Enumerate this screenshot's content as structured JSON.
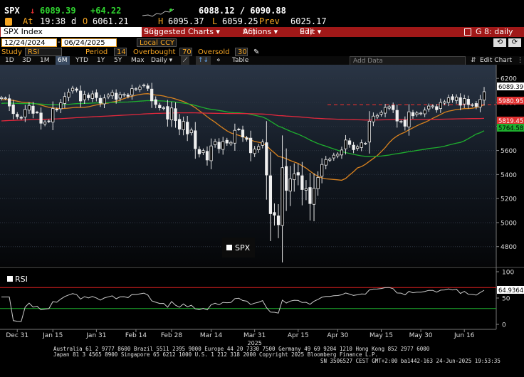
{
  "header": {
    "ticker": "SPX",
    "arrow": "↓",
    "last_price": "6089.39",
    "change": "+64.22",
    "bid_ask": "6088.12 / 6090.88",
    "at_label": "At",
    "time": "19:38",
    "d_label": "d",
    "open_label": "O",
    "open": "6061.21",
    "high_label": "H",
    "high": "6095.37",
    "low_label": "L",
    "low": "6059.25",
    "prev_label": "Prev",
    "prev": "6025.17"
  },
  "menubar": {
    "security": "SPX Index",
    "items": [
      {
        "num": "96)",
        "label": "Suggested Charts ▾"
      },
      {
        "num": "96)",
        "label": "Actions ▾"
      },
      {
        "num": "97)",
        "label": "Edit ▾"
      }
    ],
    "window": "G 8: daily",
    "window_icon": "expand-icon"
  },
  "daterow": {
    "start": "12/24/2024",
    "end": "06/24/2025",
    "currency": "Local CCY",
    "nav_back": "⟲",
    "nav_fwd": "⟳"
  },
  "studyrow": {
    "study_label": "Study",
    "study_value": "RSI",
    "period_label": "Period",
    "period_value": "14",
    "overbought_label": "Overbought",
    "overbought_value": "70",
    "oversold_label": "Oversold",
    "oversold_value": "30"
  },
  "rangerow": {
    "ranges": [
      "1D",
      "3D",
      "1M",
      "6M",
      "YTD",
      "1Y",
      "5Y",
      "Max"
    ],
    "selected": "6M",
    "interval": "Daily ▾",
    "table": "Table",
    "add_data_placeholder": "Add Data",
    "edit_chart": "Edit Chart"
  },
  "chart_data": [
    {
      "type": "line",
      "name": "SPX",
      "x": [
        "12/24",
        "12/26",
        "12/27",
        "12/30",
        "12/31",
        "01/02",
        "01/03",
        "01/06",
        "01/07",
        "01/08",
        "01/10",
        "01/13",
        "01/14",
        "01/15",
        "01/16",
        "01/17",
        "01/21",
        "01/22",
        "01/23",
        "01/24",
        "01/27",
        "01/28",
        "01/29",
        "01/30",
        "01/31",
        "02/03",
        "02/04",
        "02/05",
        "02/06",
        "02/07",
        "02/10",
        "02/11",
        "02/12",
        "02/13",
        "02/14",
        "02/18",
        "02/19",
        "02/20",
        "02/21",
        "02/24",
        "02/25",
        "02/26",
        "02/27",
        "02/28",
        "03/03",
        "03/04",
        "03/05",
        "03/06",
        "03/07",
        "03/10",
        "03/11",
        "03/12",
        "03/13",
        "03/14",
        "03/17",
        "03/18",
        "03/19",
        "03/20",
        "03/21",
        "03/24",
        "03/25",
        "03/26",
        "03/27",
        "03/28",
        "03/31",
        "04/01",
        "04/02",
        "04/03",
        "04/04",
        "04/07",
        "04/08",
        "04/09",
        "04/10",
        "04/11",
        "04/14",
        "04/15",
        "04/16",
        "04/17",
        "04/21",
        "04/22",
        "04/23",
        "04/24",
        "04/25",
        "04/28",
        "04/29",
        "04/30",
        "05/01",
        "05/02",
        "05/05",
        "05/06",
        "05/07",
        "05/08",
        "05/09",
        "05/12",
        "05/13",
        "05/14",
        "05/15",
        "05/16",
        "05/19",
        "05/20",
        "05/21",
        "05/22",
        "05/23",
        "05/27",
        "05/28",
        "05/29",
        "05/30",
        "06/02",
        "06/03",
        "06/04",
        "06/05",
        "06/06",
        "06/09",
        "06/10",
        "06/11",
        "06/12",
        "06/13",
        "06/16",
        "06/17",
        "06/18",
        "06/20",
        "06/23",
        "06/24"
      ],
      "close": [
        6040,
        6037,
        5970,
        5907,
        5882,
        5869,
        5942,
        5975,
        5909,
        5918,
        5827,
        5836,
        5842,
        5950,
        5937,
        5997,
        6049,
        6086,
        6118,
        6101,
        6012,
        6067,
        6039,
        6071,
        6040,
        5994,
        6037,
        6061,
        6083,
        6026,
        6066,
        6068,
        6051,
        6115,
        6114,
        6129,
        6144,
        6117,
        6013,
        5983,
        5955,
        5956,
        5861,
        5954,
        5849,
        5778,
        5842,
        5738,
        5770,
        5615,
        5572,
        5599,
        5521,
        5638,
        5675,
        5615,
        5675,
        5662,
        5667,
        5768,
        5777,
        5712,
        5693,
        5581,
        5612,
        5633,
        5671,
        5396,
        5074,
        5062,
        4982,
        5457,
        5268,
        5363,
        5406,
        5396,
        5275,
        5282,
        5158,
        5287,
        5376,
        5484,
        5525,
        5528,
        5561,
        5569,
        5604,
        5687,
        5650,
        5607,
        5631,
        5664,
        5660,
        5844,
        5886,
        5892,
        5917,
        5958,
        5964,
        5940,
        5845,
        5842,
        5802,
        5922,
        5889,
        5912,
        5911,
        5936,
        5970,
        5971,
        5939,
        6000,
        6006,
        6038,
        6022,
        6045,
        5977,
        6033,
        5982,
        5981,
        5967,
        6025,
        6089
      ],
      "moving_averages": [
        {
          "period": 20,
          "color": "#d9821e"
        },
        {
          "period": 50,
          "color": "#1eae2e"
        },
        {
          "period": 200,
          "color": "#e0283c"
        }
      ],
      "price_labels": [
        {
          "value": "6089.39",
          "style": "last"
        },
        {
          "value": "5980.95",
          "style": "red"
        },
        {
          "value": "5819.45",
          "style": "red"
        },
        {
          "value": "5764.58",
          "style": "green"
        }
      ],
      "reference_line": 5980.95,
      "legend": "SPX",
      "y_ticks": [
        "6200",
        "6000",
        "5800",
        "5600",
        "5400",
        "5200",
        "5000",
        "4800"
      ],
      "y_tick_values": [
        6200,
        6000,
        5800,
        5600,
        5400,
        5200,
        5000,
        4800
      ],
      "ylim": [
        4680,
        6290
      ]
    },
    {
      "type": "line",
      "name": "RSI",
      "legend": "RSI",
      "last_value": "64.9364",
      "overbought": 70,
      "oversold": 30,
      "y_ticks": [
        "100",
        "50",
        "0"
      ],
      "ylim": [
        0,
        100
      ]
    }
  ],
  "x_axis": {
    "ticks": [
      "Dec 31",
      "Jan 15",
      "Jan 31",
      "Feb 14",
      "Feb 28",
      "Mar 14",
      "Mar 31",
      "Apr 15",
      "Apr 30",
      "May 15",
      "May 30",
      "Jun 16"
    ],
    "year_label": "2025"
  },
  "footer": {
    "line1": "Australia 61 2 9777 8600 Brazil 5511 2395 9000 Europe 44 20 7330 7500 Germany 49 69 9204 1210 Hong Kong 852 2977 6000",
    "line2": "Japan 81 3 4565 8900       Singapore 65 6212 1000         U.S. 1 212 318 2000         Copyright 2025 Bloomberg Finance L.P.",
    "line3": "SN 3506527 CEST GMT+2:00 ba1442-163 24-Jun-2025 19:53:35"
  },
  "colors": {
    "amber": "#f6a623",
    "menubar": "#a01818",
    "price": "#ffffff",
    "ma20": "#d9821e",
    "ma50": "#1eae2e",
    "ma200": "#e0283c",
    "rsi": "#cccccc"
  }
}
